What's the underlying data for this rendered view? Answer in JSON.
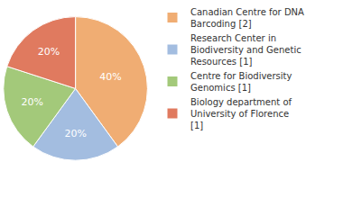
{
  "chart_data": {
    "type": "pie",
    "categories": [
      "Canadian Centre for DNA Barcoding [2]",
      "Research Center in Biodiversity and Genetic Resources [1]",
      "Centre for Biodiversity Genomics [1]",
      "Biology department of University of Florence [1]"
    ],
    "values": [
      40,
      20,
      20,
      20
    ],
    "value_labels": [
      "40%",
      "20%",
      "20%",
      "20%"
    ],
    "colors": [
      "#f0ad73",
      "#a3bde0",
      "#a3c97a",
      "#e07a5f"
    ],
    "data_labels": true,
    "legend": "top right"
  }
}
